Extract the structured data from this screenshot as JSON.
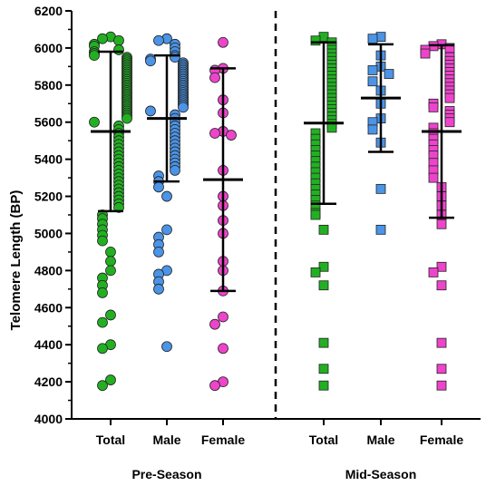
{
  "chart_data": {
    "type": "scatter",
    "ylabel": "Telomere Length (BP)",
    "ylim": [
      4000,
      6200
    ],
    "yticks": [
      4000,
      4200,
      4400,
      4600,
      4800,
      5000,
      5200,
      5400,
      5600,
      5800,
      6000,
      6200
    ],
    "grid": false,
    "groups": [
      {
        "label": "Pre-Season",
        "categories": [
          "Total",
          "Male",
          "Female"
        ]
      },
      {
        "label": "Mid-Season",
        "categories": [
          "Total",
          "Male",
          "Female"
        ]
      }
    ],
    "colors": {
      "green": "#22b022",
      "blue": "#4b94e6",
      "pink": "#ee44cc"
    },
    "series": [
      {
        "group": "Pre-Season",
        "category": "Total",
        "marker": "circle",
        "color": "green",
        "mean": 5550,
        "sd_low": 5120,
        "sd_high": 5980,
        "values": [
          6060,
          6050,
          6040,
          6020,
          6010,
          5990,
          5980,
          5970,
          5960,
          5950,
          5940,
          5930,
          5920,
          5910,
          5900,
          5890,
          5880,
          5870,
          5860,
          5850,
          5840,
          5830,
          5820,
          5810,
          5800,
          5790,
          5780,
          5770,
          5760,
          5750,
          5740,
          5730,
          5720,
          5710,
          5700,
          5690,
          5680,
          5670,
          5660,
          5650,
          5640,
          5630,
          5620,
          5600,
          5580,
          5560,
          5540,
          5520,
          5500,
          5480,
          5460,
          5440,
          5420,
          5400,
          5380,
          5360,
          5340,
          5320,
          5300,
          5280,
          5260,
          5240,
          5220,
          5200,
          5180,
          5160,
          5140,
          5100,
          5080,
          5050,
          5020,
          4990,
          4960,
          4900,
          4850,
          4800,
          4760,
          4720,
          4680,
          4560,
          4520,
          4400,
          4380,
          4210,
          4180
        ]
      },
      {
        "group": "Pre-Season",
        "category": "Male",
        "marker": "circle",
        "color": "blue",
        "mean": 5620,
        "sd_low": 5280,
        "sd_high": 5960,
        "values": [
          6050,
          6040,
          6020,
          6000,
          5980,
          5960,
          5950,
          5940,
          5930,
          5920,
          5910,
          5900,
          5890,
          5880,
          5870,
          5860,
          5850,
          5840,
          5830,
          5820,
          5810,
          5800,
          5790,
          5780,
          5770,
          5760,
          5750,
          5740,
          5730,
          5720,
          5710,
          5700,
          5690,
          5680,
          5660,
          5640,
          5620,
          5600,
          5580,
          5560,
          5540,
          5520,
          5500,
          5480,
          5460,
          5440,
          5420,
          5400,
          5380,
          5360,
          5340,
          5310,
          5280,
          5250,
          5200,
          5020,
          4980,
          4940,
          4900,
          4800,
          4780,
          4740,
          4700,
          4390
        ]
      },
      {
        "group": "Pre-Season",
        "category": "Female",
        "marker": "circle",
        "color": "pink",
        "mean": 5290,
        "sd_low": 4690,
        "sd_high": 5890,
        "values": [
          6030,
          5890,
          5880,
          5840,
          5720,
          5650,
          5550,
          5540,
          5530,
          5340,
          5200,
          5150,
          5070,
          5000,
          4850,
          4800,
          4690,
          4550,
          4510,
          4380,
          4200,
          4180
        ]
      },
      {
        "group": "Mid-Season",
        "category": "Total",
        "marker": "square",
        "color": "green",
        "mean": 5595,
        "sd_low": 5160,
        "sd_high": 6030,
        "values": [
          6060,
          6040,
          6030,
          6010,
          5990,
          5970,
          5950,
          5930,
          5910,
          5890,
          5870,
          5850,
          5830,
          5810,
          5790,
          5770,
          5750,
          5730,
          5710,
          5690,
          5670,
          5650,
          5630,
          5610,
          5590,
          5570,
          5540,
          5510,
          5480,
          5450,
          5420,
          5390,
          5360,
          5330,
          5300,
          5270,
          5240,
          5210,
          5180,
          5150,
          5110,
          5100,
          5020,
          4820,
          4790,
          4720,
          4410,
          4270,
          4180
        ]
      },
      {
        "group": "Mid-Season",
        "category": "Male",
        "marker": "square",
        "color": "blue",
        "mean": 5730,
        "sd_low": 5440,
        "sd_high": 6020,
        "values": [
          6060,
          6050,
          5960,
          5900,
          5880,
          5860,
          5820,
          5770,
          5700,
          5620,
          5600,
          5560,
          5490,
          5240,
          5020
        ]
      },
      {
        "group": "Mid-Season",
        "category": "Female",
        "marker": "square",
        "color": "pink",
        "mean": 5550,
        "sd_low": 5085,
        "sd_high": 6015,
        "values": [
          6020,
          6010,
          6000,
          5990,
          5970,
          5950,
          5930,
          5910,
          5890,
          5870,
          5850,
          5830,
          5810,
          5790,
          5770,
          5750,
          5730,
          5700,
          5680,
          5660,
          5640,
          5620,
          5600,
          5570,
          5540,
          5510,
          5480,
          5450,
          5420,
          5380,
          5340,
          5300,
          5250,
          5200,
          5150,
          5100,
          5050,
          4820,
          4790,
          4720,
          4410,
          4270,
          4180
        ]
      }
    ]
  }
}
